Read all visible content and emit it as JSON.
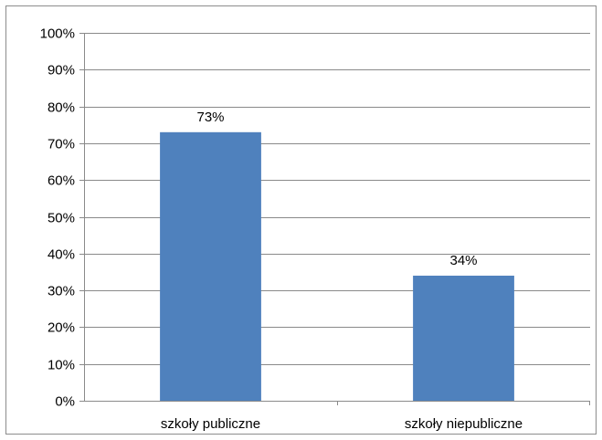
{
  "chart_data": {
    "type": "bar",
    "categories": [
      "szkoły publiczne",
      "szkoły niepubliczne"
    ],
    "values": [
      73,
      34
    ],
    "data_labels": [
      "73%",
      "34%"
    ],
    "ylim": [
      0,
      100
    ],
    "ytick_values": [
      0,
      10,
      20,
      30,
      40,
      50,
      60,
      70,
      80,
      90,
      100
    ],
    "ytick_labels": [
      "0%",
      "10%",
      "20%",
      "30%",
      "40%",
      "50%",
      "60%",
      "70%",
      "80%",
      "90%",
      "100%"
    ],
    "grid": true,
    "legend": "none",
    "bar_color": "#4f81bd",
    "title": "",
    "xlabel": "",
    "ylabel": ""
  }
}
